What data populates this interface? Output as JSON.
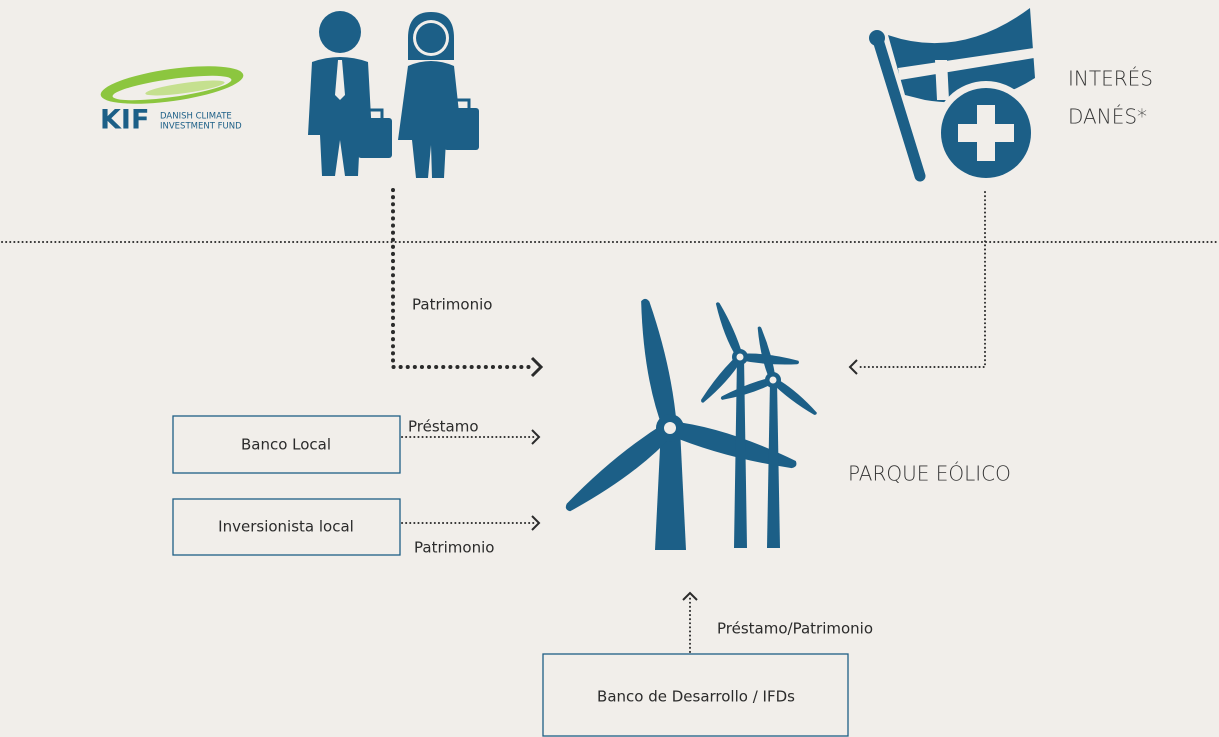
{
  "logo": {
    "name": "KIF",
    "subtitle_lines": [
      "DANISH CLIMATE",
      "INVESTMENT FUND"
    ]
  },
  "danish_interest": {
    "lines": [
      "INTERÉS",
      "DANÉS*"
    ]
  },
  "center": {
    "label": "PARQUE EÓLICO"
  },
  "nodes": [
    {
      "label": "Banco Local"
    },
    {
      "label": "Inversionista local"
    },
    {
      "label": "Banco de Desarrollo / IFDs"
    }
  ],
  "edges": [
    {
      "label": "Patrimonio"
    },
    {
      "label": "Préstamo"
    },
    {
      "label": "Patrimonio"
    },
    {
      "label": "Préstamo/Patrimonio"
    }
  ]
}
